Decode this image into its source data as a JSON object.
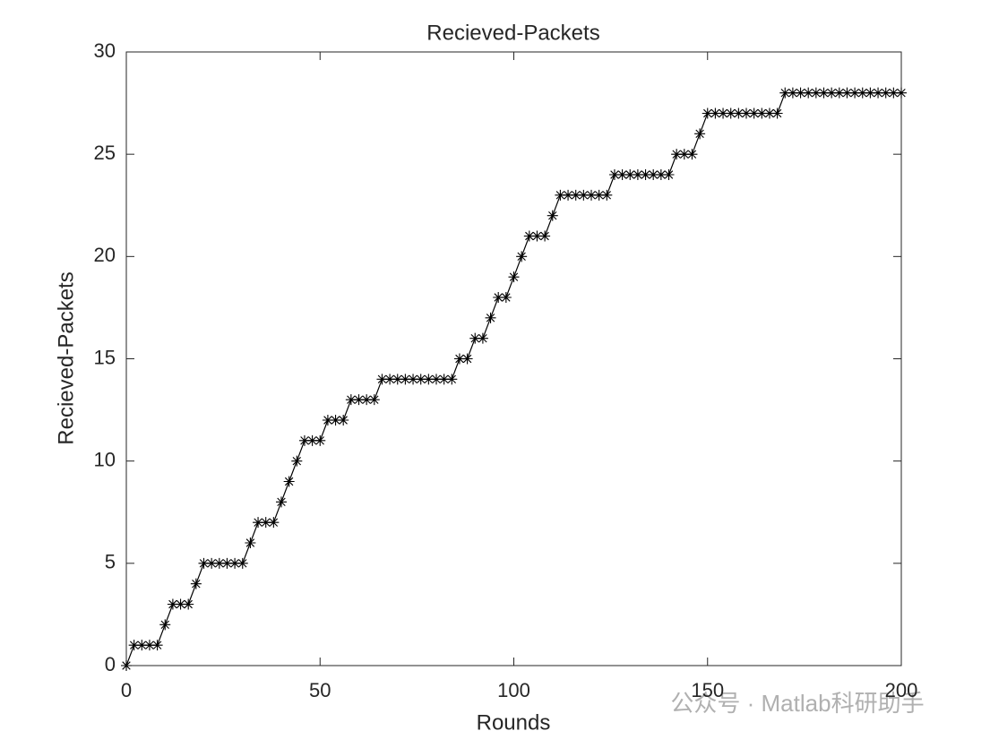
{
  "chart_data": {
    "type": "line",
    "title": "Recieved-Packets",
    "xlabel": "Rounds",
    "ylabel": "Recieved-Packets",
    "x": [
      0,
      2,
      4,
      6,
      8,
      10,
      12,
      14,
      16,
      18,
      20,
      22,
      24,
      26,
      28,
      30,
      32,
      34,
      36,
      38,
      40,
      42,
      44,
      46,
      48,
      50,
      52,
      54,
      56,
      58,
      60,
      62,
      64,
      66,
      68,
      70,
      72,
      74,
      76,
      78,
      80,
      82,
      84,
      86,
      88,
      90,
      92,
      94,
      96,
      98,
      100,
      102,
      104,
      106,
      108,
      110,
      112,
      114,
      116,
      118,
      120,
      122,
      124,
      126,
      128,
      130,
      132,
      134,
      136,
      138,
      140,
      142,
      144,
      146,
      148,
      150,
      152,
      154,
      156,
      158,
      160,
      162,
      164,
      166,
      168,
      170,
      172,
      174,
      176,
      178,
      180,
      182,
      184,
      186,
      188,
      190,
      192,
      194,
      196,
      198,
      200
    ],
    "series": [
      {
        "name": "Recieved-Packets",
        "color": "#000000",
        "marker": "asterisk",
        "values": [
          0,
          1,
          1,
          1,
          1,
          2,
          3,
          3,
          3,
          4,
          5,
          5,
          5,
          5,
          5,
          5,
          6,
          7,
          7,
          7,
          8,
          9,
          10,
          11,
          11,
          11,
          12,
          12,
          12,
          13,
          13,
          13,
          13,
          14,
          14,
          14,
          14,
          14,
          14,
          14,
          14,
          14,
          14,
          15,
          15,
          16,
          16,
          17,
          18,
          18,
          19,
          20,
          21,
          21,
          21,
          22,
          23,
          23,
          23,
          23,
          23,
          23,
          23,
          24,
          24,
          24,
          24,
          24,
          24,
          24,
          24,
          25,
          25,
          25,
          26,
          27,
          27,
          27,
          27,
          27,
          27,
          27,
          27,
          27,
          27,
          28,
          28,
          28,
          28,
          28,
          28,
          28,
          28,
          28,
          28,
          28,
          28,
          28,
          28,
          28,
          28
        ]
      }
    ],
    "xlim": [
      0,
      200
    ],
    "xticks": [
      0,
      50,
      100,
      150,
      200
    ],
    "ylim": [
      0,
      30
    ],
    "yticks": [
      0,
      5,
      10,
      15,
      20,
      25,
      30
    ],
    "grid": false,
    "watermark": "公众号 · Matlab科研助手"
  }
}
